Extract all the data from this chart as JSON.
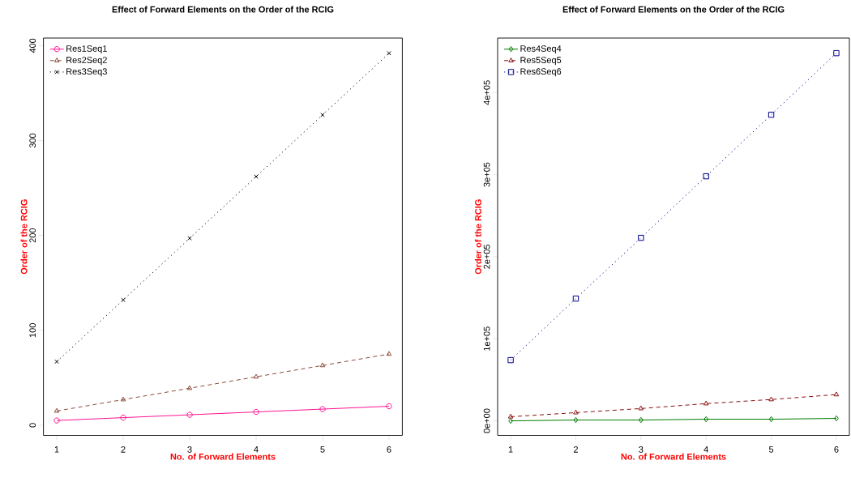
{
  "chart_data": [
    {
      "type": "line",
      "title": "Effect of Forward Elements on the Order of the RCIG",
      "xlabel": "No. of  Forward Elements",
      "ylabel": "Order of the RCIG",
      "x": [
        1,
        2,
        3,
        4,
        5,
        6
      ],
      "xlim": [
        0.8,
        6.2
      ],
      "xticks": [
        1,
        2,
        3,
        4,
        5,
        6
      ],
      "ylim": [
        -10.7,
        408
      ],
      "yticks": [
        0,
        100,
        200,
        300,
        400
      ],
      "legend": "top left",
      "grid": false,
      "series": [
        {
          "name": "Res1Seq1",
          "color": "#ff1493",
          "marker": "circle",
          "line_style": "solid",
          "values": [
            5,
            8,
            11,
            14,
            17,
            20
          ]
        },
        {
          "name": "Res2Seq2",
          "color": "#8b4c39",
          "marker": "triangle",
          "line_style": "dashed",
          "values": [
            15,
            27,
            39,
            51,
            63,
            75
          ]
        },
        {
          "name": "Res3Seq3",
          "color": "#000000",
          "marker": "cross",
          "line_style": "dotted",
          "values": [
            67,
            132,
            197,
            262,
            327,
            392
          ]
        }
      ]
    },
    {
      "type": "line",
      "title": "Effect of Forward Elements on the Order of the RCIG",
      "xlabel": "No. of  Forward Elements",
      "ylabel": "Order of the RCIG",
      "x": [
        1,
        2,
        3,
        4,
        5,
        6
      ],
      "xlim": [
        0.8,
        6.2
      ],
      "xticks": [
        1,
        2,
        3,
        4,
        5,
        6
      ],
      "ylim": [
        -17700,
        466400
      ],
      "yticks": [
        {
          "value": 0,
          "label": "0e+00"
        },
        {
          "value": 100000,
          "label": "1e+05"
        },
        {
          "value": 200000,
          "label": "2e+05"
        },
        {
          "value": 300000,
          "label": "3e+05"
        },
        {
          "value": 400000,
          "label": "4e+05"
        }
      ],
      "legend": "top left",
      "grid": false,
      "series": [
        {
          "name": "Res4Seq4",
          "color": "#007a00",
          "marker": "diamond",
          "line_style": "solid",
          "values": [
            0,
            1000,
            1000,
            2000,
            2000,
            3000
          ]
        },
        {
          "name": "Res5Seq5",
          "color": "#8b1010",
          "marker": "triangle",
          "line_style": "dashed",
          "values": [
            5000,
            10000,
            15000,
            21000,
            26000,
            32000
          ]
        },
        {
          "name": "Res6Seq6",
          "color": "#00008b",
          "marker": "square",
          "line_style": "dotted",
          "values": [
            74000,
            149000,
            223000,
            298000,
            373000,
            448000
          ]
        }
      ]
    }
  ]
}
